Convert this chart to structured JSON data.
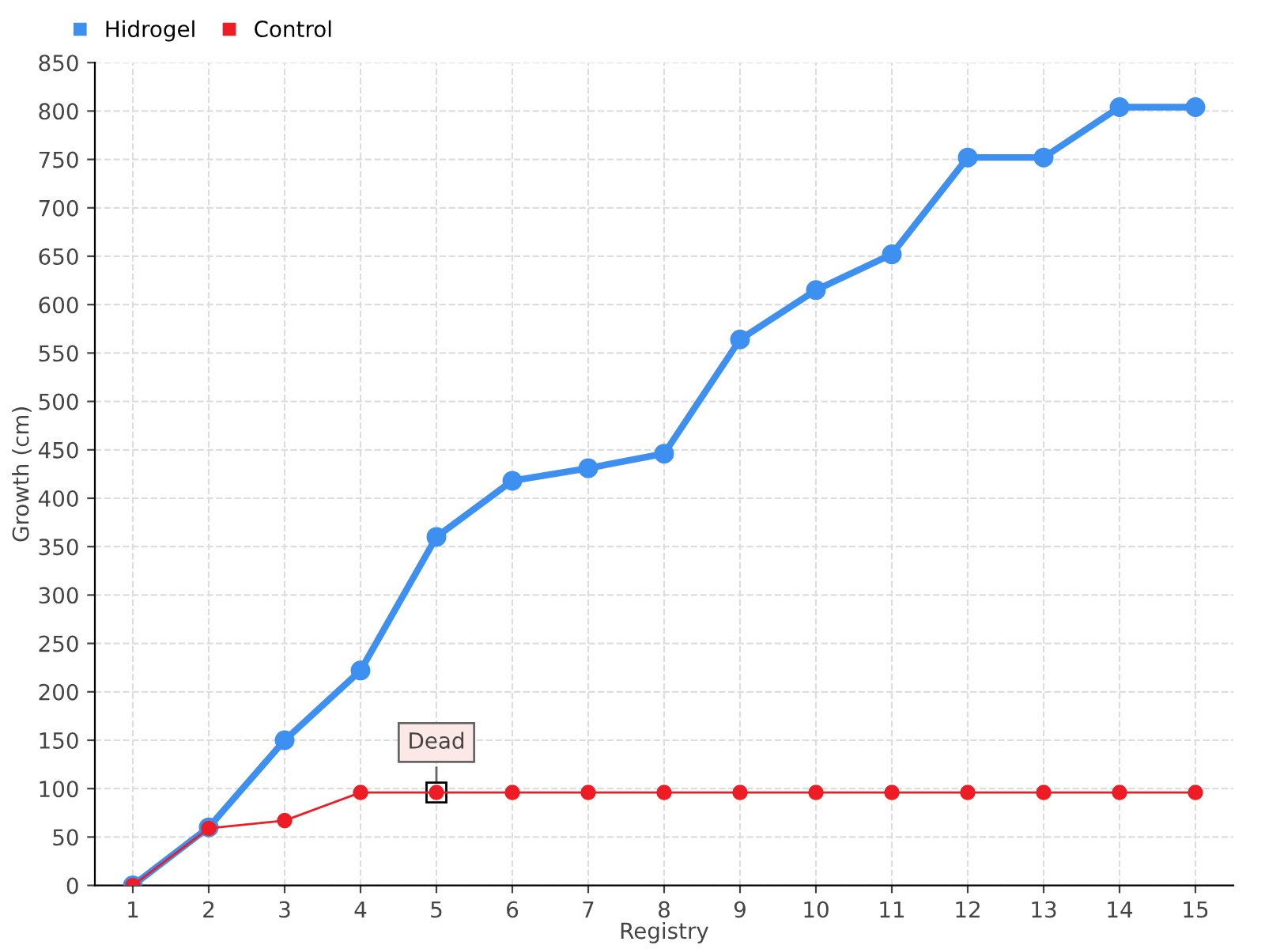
{
  "chart_data": {
    "type": "line",
    "xlabel": "Registry",
    "ylabel": "Growth (cm)",
    "x": [
      1,
      2,
      3,
      4,
      5,
      6,
      7,
      8,
      9,
      10,
      11,
      12,
      13,
      14,
      15
    ],
    "series": [
      {
        "name": "Hidrogel",
        "color": "#3d8ff0",
        "values": [
          0,
          60,
          150,
          222,
          360,
          418,
          431,
          446,
          564,
          615,
          652,
          752,
          752,
          804,
          804
        ]
      },
      {
        "name": "Control",
        "color": "#ee1c25",
        "values": [
          0,
          59,
          67,
          96,
          96,
          96,
          96,
          96,
          96,
          96,
          96,
          96,
          96,
          96,
          96
        ]
      }
    ],
    "xlim": [
      0.5,
      15.5
    ],
    "xticks": [
      1,
      2,
      3,
      4,
      5,
      6,
      7,
      8,
      9,
      10,
      11,
      12,
      13,
      14,
      15
    ],
    "ylim": [
      0,
      850
    ],
    "yticks": [
      0,
      50,
      100,
      150,
      200,
      250,
      300,
      350,
      400,
      450,
      500,
      550,
      600,
      650,
      700,
      750,
      800,
      850
    ],
    "annotations": [
      {
        "text": "Dead",
        "x": 5,
        "y": 96
      }
    ],
    "grid": true,
    "legend": "top left",
    "marker": "circle",
    "line_style": "solid"
  }
}
